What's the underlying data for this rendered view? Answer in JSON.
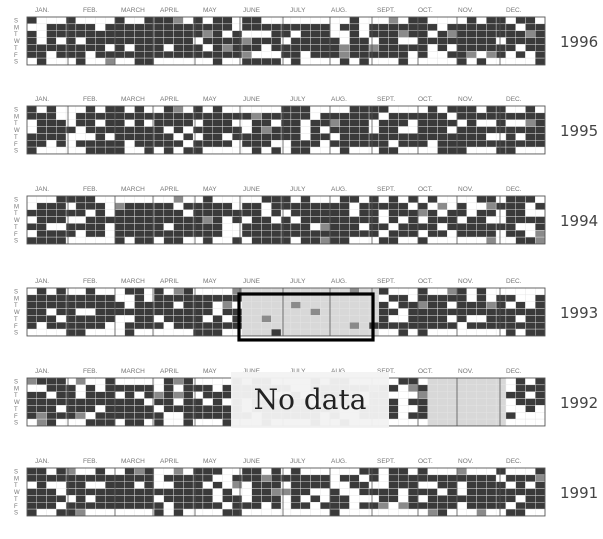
{
  "chart_data": {
    "type": "heatmap",
    "description_visible": "Daily calendar grids per year; dark cells = days with events, gray = highlighted, light gray = missing data",
    "month_labels": [
      "JAN.",
      "FEB.",
      "MARCH",
      "APRIL",
      "MAY",
      "JUNE",
      "JULY",
      "AUG.",
      "SEPT.",
      "OCT.",
      "NOV.",
      "DEC."
    ],
    "weekday_labels": [
      "S",
      "M",
      "T",
      "W",
      "T",
      "F",
      "S"
    ],
    "years": [
      {
        "year": "1996",
        "no_data_months": [],
        "boxed_months": []
      },
      {
        "year": "1995",
        "no_data_months": [],
        "boxed_months": []
      },
      {
        "year": "1994",
        "no_data_months": [],
        "boxed_months": []
      },
      {
        "year": "1993",
        "no_data_months": [
          "JUNE",
          "JULY",
          "AUG."
        ],
        "boxed_months": [
          "JUNE",
          "JULY",
          "AUG."
        ]
      },
      {
        "year": "1992",
        "no_data_months": [
          "OCT.",
          "NOV."
        ],
        "boxed_months": []
      },
      {
        "year": "1991",
        "no_data_months": [],
        "boxed_months": []
      }
    ],
    "annotation": "No data",
    "colors": {
      "filled": "#3a3a3a",
      "highlight": "#8a8a8a",
      "missing": "#d8d8d8",
      "empty": "#ffffff",
      "grid": "#e4e4e4"
    }
  }
}
